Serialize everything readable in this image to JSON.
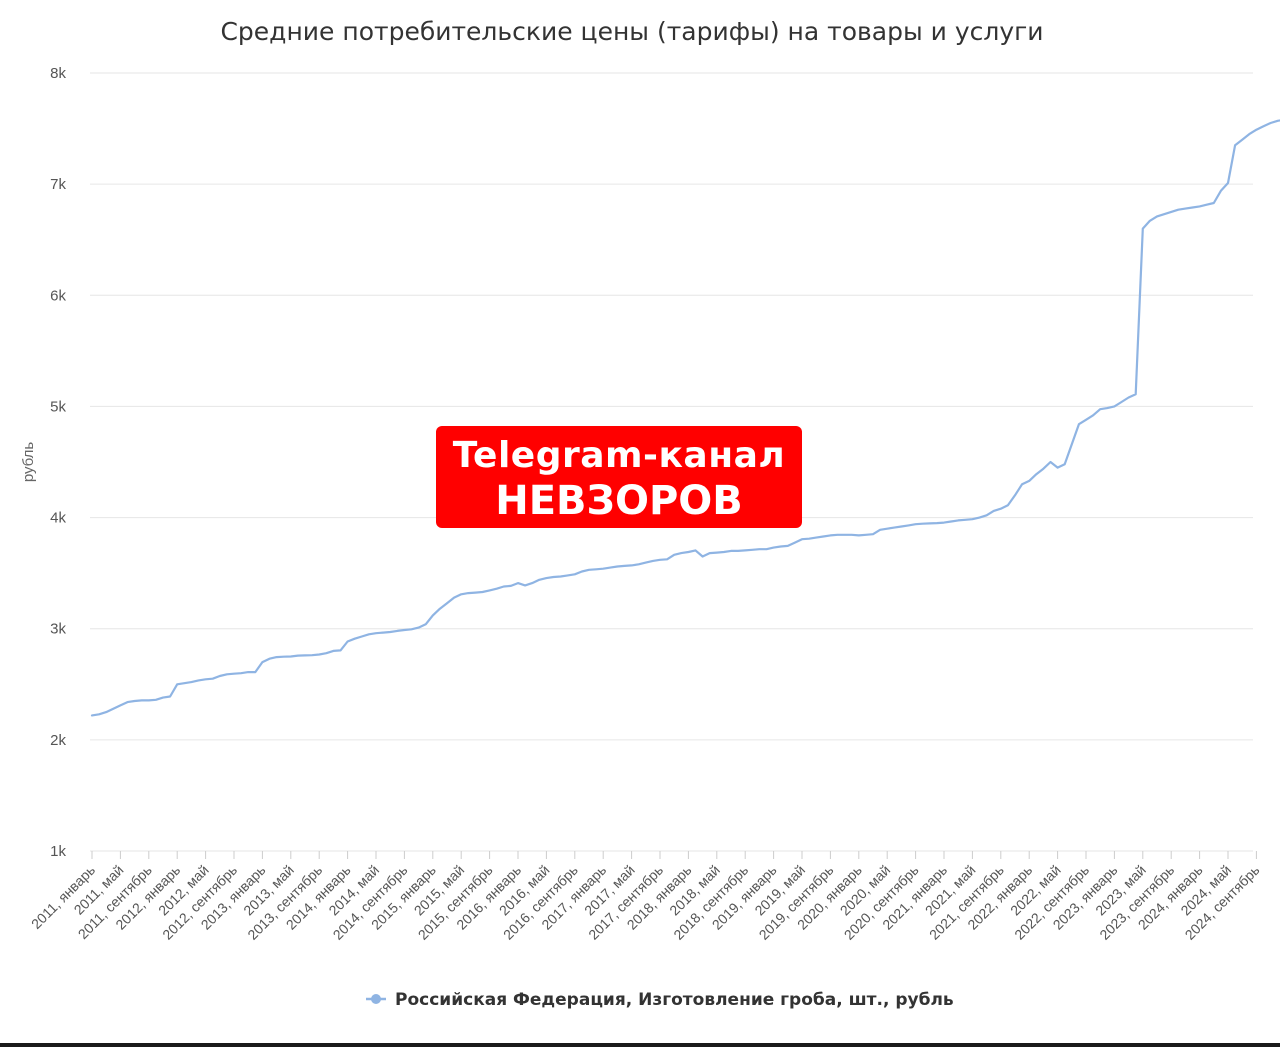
{
  "watermark": {
    "line1": "Telegram-канал",
    "line2": "НЕВЗОРОВ",
    "color": "#ff0000"
  },
  "chart_data": {
    "type": "line",
    "title": "Средние потребительские цены (тарифы) на товары и услуги",
    "ylabel": "рубль",
    "xlabel": "",
    "ylim": [
      1000,
      8000
    ],
    "yticks": [
      1000,
      2000,
      3000,
      4000,
      5000,
      6000,
      7000,
      8000
    ],
    "ytick_labels": [
      "1k",
      "2k",
      "3k",
      "4k",
      "5k",
      "6k",
      "7k",
      "8k"
    ],
    "grid": true,
    "legend_position": "bottom",
    "line_color": "#8fb4e3",
    "x_start": "2011-01",
    "x_tick_labels": [
      "2011, январь",
      "2011, май",
      "2011, сентябрь",
      "2012, январь",
      "2012, май",
      "2012, сентябрь",
      "2013, январь",
      "2013, май",
      "2013, сентябрь",
      "2014, январь",
      "2014, май",
      "2014, сентябрь",
      "2015, январь",
      "2015, май",
      "2015, сентябрь",
      "2016, январь",
      "2016, май",
      "2016, сентябрь",
      "2017, январь",
      "2017, май",
      "2017, сентябрь",
      "2018, январь",
      "2018, май",
      "2018, сентябрь",
      "2019, январь",
      "2019, май",
      "2019, сентябрь",
      "2020, январь",
      "2020, май",
      "2020, сентябрь",
      "2021, январь",
      "2021, май",
      "2021, сентябрь",
      "2022, январь",
      "2022, май",
      "2022, сентябрь",
      "2023, январь",
      "2023, май",
      "2023, сентябрь",
      "2024, январь",
      "2024, май",
      "2024, сентябрь"
    ],
    "series": [
      {
        "name": "Российская Федерация, Изготовление гроба, шт., рубль",
        "values": [
          2220,
          2230,
          2250,
          2280,
          2310,
          2340,
          2350,
          2355,
          2355,
          2360,
          2380,
          2390,
          2500,
          2510,
          2520,
          2535,
          2545,
          2550,
          2575,
          2590,
          2595,
          2600,
          2610,
          2610,
          2700,
          2730,
          2745,
          2748,
          2750,
          2758,
          2760,
          2762,
          2768,
          2780,
          2800,
          2805,
          2885,
          2910,
          2930,
          2950,
          2960,
          2965,
          2970,
          2980,
          2988,
          2995,
          3010,
          3040,
          3120,
          3180,
          3230,
          3280,
          3310,
          3320,
          3325,
          3330,
          3345,
          3360,
          3380,
          3385,
          3410,
          3390,
          3410,
          3440,
          3455,
          3465,
          3470,
          3480,
          3490,
          3515,
          3530,
          3535,
          3540,
          3550,
          3560,
          3565,
          3570,
          3580,
          3595,
          3610,
          3620,
          3625,
          3665,
          3680,
          3690,
          3705,
          3650,
          3680,
          3685,
          3690,
          3700,
          3700,
          3705,
          3710,
          3715,
          3715,
          3730,
          3740,
          3745,
          3775,
          3805,
          3810,
          3820,
          3830,
          3840,
          3845,
          3845,
          3845,
          3840,
          3845,
          3850,
          3890,
          3900,
          3910,
          3920,
          3930,
          3940,
          3945,
          3948,
          3950,
          3955,
          3965,
          3975,
          3980,
          3985,
          4000,
          4020,
          4060,
          4080,
          4110,
          4200,
          4300,
          4330,
          4390,
          4440,
          4500,
          4450,
          4480,
          4660,
          4840,
          4880,
          4920,
          4975,
          4985,
          5000,
          5040,
          5080,
          5110,
          6600,
          6670,
          6710,
          6730,
          6750,
          6770,
          6780,
          6790,
          6800,
          6815,
          6830,
          6940,
          7010,
          7350,
          7400,
          7450,
          7490,
          7520,
          7550,
          7570,
          7580,
          7610,
          7660,
          7710
        ]
      }
    ]
  }
}
